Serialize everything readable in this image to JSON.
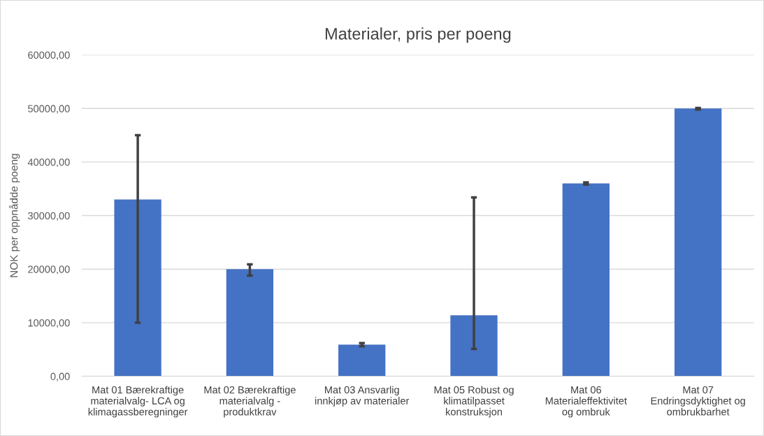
{
  "chart_data": {
    "type": "bar",
    "title": "Materialer, pris per poeng",
    "ylabel": "NOK per oppnådde poeng",
    "categories": [
      "Mat 01 Bærekraftige\nmaterialvalg- LCA og\nklimagassberegninger",
      "Mat 02 Bærekraftige\nmaterialvalg -\nproduktkrav",
      "Mat 03 Ansvarlig\ninnkjøp av materialer",
      "Mat 05 Robust og\nklimatilpasset\nkonstruksjon",
      "Mat 06\nMaterialeffektivitet\nog ombruk",
      "Mat 07\nEndringsdyktighet og\nombrukbarhet"
    ],
    "values": [
      33000,
      20000,
      5900,
      11400,
      36000,
      50000
    ],
    "errors": [
      [
        10000,
        45000
      ],
      [
        18800,
        20900
      ],
      [
        5600,
        6200
      ],
      [
        5100,
        33400
      ],
      [
        35800,
        36200
      ],
      [
        49800,
        50100
      ]
    ],
    "color": "#4472c4",
    "ylim": [
      0,
      60000
    ],
    "yticks": [
      {
        "value": 0,
        "label": "0,00"
      },
      {
        "value": 10000,
        "label": "10000,00"
      },
      {
        "value": 20000,
        "label": "20000,00"
      },
      {
        "value": 30000,
        "label": "30000,00"
      },
      {
        "value": 40000,
        "label": "40000,00"
      },
      {
        "value": 50000,
        "label": "50000,00"
      },
      {
        "value": 60000,
        "label": "60000,00"
      }
    ],
    "grid": "y",
    "legend": false
  }
}
